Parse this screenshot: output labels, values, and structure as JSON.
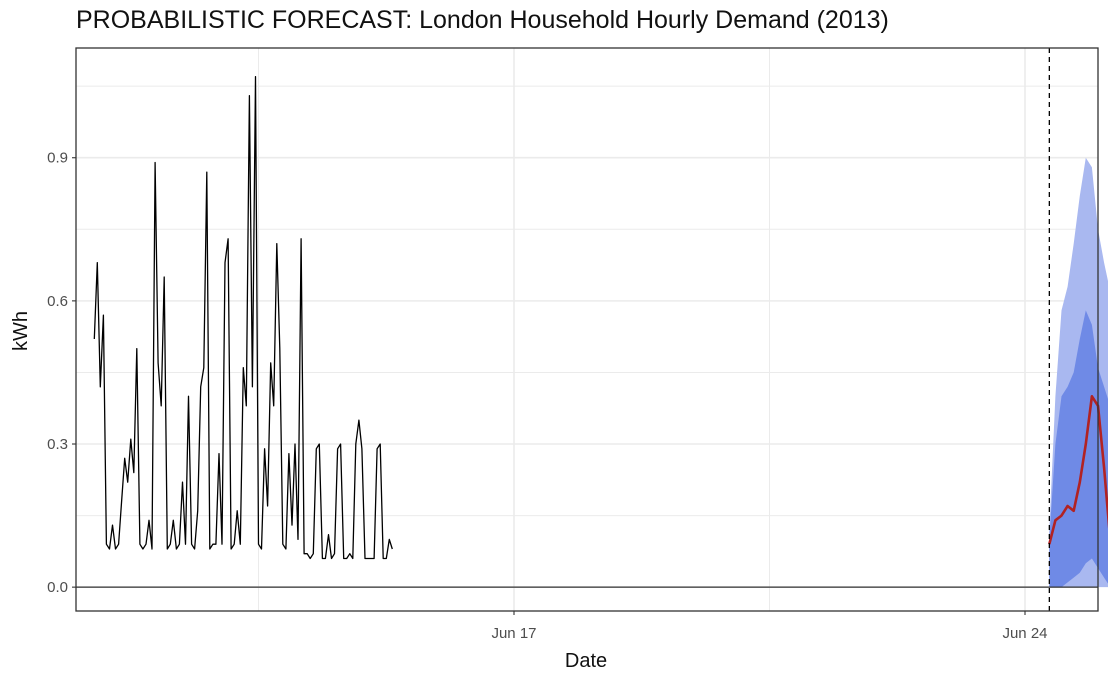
{
  "chart_data": {
    "type": "line",
    "title": "PROBABILISTIC FORECAST: London Household Hourly Demand (2013)",
    "xlabel": "Date",
    "ylabel": "kWh",
    "ylim": [
      -0.05,
      1.13
    ],
    "xlim": [
      "2013-06-11",
      "2013-06-25"
    ],
    "x_ticks": [
      {
        "label": "Jun 17",
        "date": "2013-06-17"
      },
      {
        "label": "Jun 24",
        "date": "2013-06-24"
      }
    ],
    "y_ticks": [
      {
        "label": "0.0",
        "value": 0.0
      },
      {
        "label": "0.3",
        "value": 0.3
      },
      {
        "label": "0.6",
        "value": 0.6
      },
      {
        "label": "0.9",
        "value": 0.9
      }
    ],
    "forecast_origin": "2013-06-24 08:00",
    "grid": true,
    "colors": {
      "history": "#000000",
      "forecast_mean": "#b22222",
      "interval_outer": "#a9b8f0",
      "interval_inner": "#6f8ae6",
      "panel_border": "#333333",
      "grid": "#ebebeb"
    },
    "series": [
      {
        "values": [
          [
            0.52,
            0.68,
            0.42,
            0.57,
            0.09
          ],
          [
            0.08,
            0.13,
            0.08,
            0.09,
            0.18,
            0.27,
            0.22,
            0.31,
            0.24,
            0.5,
            0.09
          ],
          [
            0.08,
            0.09,
            0.14,
            0.08,
            0.89,
            0.47,
            0.38,
            0.65,
            0.08
          ],
          [
            0.09,
            0.14,
            0.08,
            0.09,
            0.22,
            0.09,
            0.4,
            0.09
          ],
          [
            0.08,
            0.16,
            0.42,
            0.46,
            0.87,
            0.08
          ],
          [
            0.09,
            0.09,
            0.28,
            0.09,
            0.68,
            0.73,
            0.08
          ],
          [
            0.09,
            0.16,
            0.09,
            0.46,
            0.38,
            1.03,
            0.42,
            1.07,
            0.09
          ],
          [
            0.08,
            0.29,
            0.17,
            0.47,
            0.38,
            0.72,
            0.5,
            0.09
          ],
          [
            0.08,
            0.28,
            0.13,
            0.3,
            0.1,
            0.73,
            0.07
          ],
          [
            0.07,
            0.06,
            0.07,
            0.29,
            0.3,
            0.06
          ],
          [
            0.06,
            0.11,
            0.06,
            0.07,
            0.29,
            0.3,
            0.06
          ],
          [
            0.06,
            0.07,
            0.06,
            0.3,
            0.35,
            0.29,
            0.06
          ],
          [
            0.06,
            0.06,
            0.06,
            0.29,
            0.3,
            0.06
          ],
          [
            0.06,
            0.1,
            0.08
          ]
        ],
        "x_start": "2013-06-11 06:00",
        "x_interval_hours": 1
      },
      {
        "name": "forecast mean",
        "values": [
          0.09,
          0.14,
          0.15,
          0.17,
          0.16,
          0.22,
          0.3,
          0.4,
          0.38,
          0.25,
          0.1,
          0.06,
          0.06,
          0.07
        ],
        "x_start": "2013-06-24 08:00",
        "x_interval_hours": 2
      }
    ],
    "bands": [
      {
        "upper": [
          0.12,
          0.4,
          0.58,
          0.63,
          0.72,
          0.82,
          0.9,
          0.88,
          0.75,
          0.68,
          0.62,
          0.65,
          0.7
        ],
        "lower": [
          0.0,
          0.0,
          0.0,
          0.0,
          0.0,
          0.0,
          0.0,
          0.0,
          0.0,
          0.0,
          0.0,
          0.0,
          0.0
        ]
      },
      {
        "upper": [
          0.1,
          0.3,
          0.4,
          0.42,
          0.45,
          0.52,
          0.58,
          0.55,
          0.46,
          0.42,
          0.38,
          0.4,
          0.42
        ],
        "lower": [
          0.0,
          0.0,
          0.0,
          0.01,
          0.02,
          0.03,
          0.05,
          0.06,
          0.04,
          0.02,
          0.0,
          0.0,
          0.0
        ]
      }
    ]
  }
}
